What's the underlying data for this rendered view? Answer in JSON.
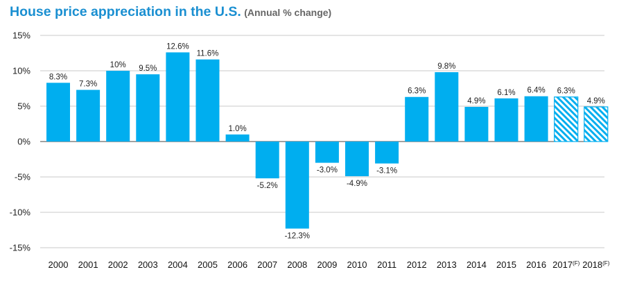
{
  "title": "House price appreciation in the U.S.",
  "subtitle": "(Annual % change)",
  "colors": {
    "title": "#1a8fd1",
    "bar": "#00aeef",
    "grid": "#c8c8c8"
  },
  "chart_data": {
    "type": "bar",
    "title": "House price appreciation in the U.S.",
    "subtitle": "(Annual % change)",
    "xlabel": "",
    "ylabel": "",
    "ylim": [
      -15,
      15
    ],
    "yticks": [
      15,
      10,
      5,
      0,
      -5,
      -10,
      -15
    ],
    "ytick_labels": [
      "15%",
      "10%",
      "5%",
      "0%",
      "-5%",
      "-10%",
      "-15%"
    ],
    "grid": true,
    "categories": [
      "2000",
      "2001",
      "2002",
      "2003",
      "2004",
      "2005",
      "2006",
      "2007",
      "2008",
      "2009",
      "2010",
      "2011",
      "2012",
      "2013",
      "2014",
      "2015",
      "2016",
      "2017(F)",
      "2018(F)"
    ],
    "values": [
      8.3,
      7.3,
      10,
      9.5,
      12.6,
      11.6,
      1.0,
      -5.2,
      -12.3,
      -3.0,
      -4.9,
      -3.1,
      6.3,
      9.8,
      4.9,
      6.1,
      6.4,
      6.3,
      4.9
    ],
    "labels": [
      "8.3%",
      "7.3%",
      "10%",
      "9.5%",
      "12.6%",
      "11.6%",
      "1.0%",
      "-5.2%",
      "-12.3%",
      "-3.0%",
      "-4.9%",
      "-3.1%",
      "6.3%",
      "9.8%",
      "4.9%",
      "6.1%",
      "6.4%",
      "6.3%",
      "4.9%"
    ],
    "forecast": [
      false,
      false,
      false,
      false,
      false,
      false,
      false,
      false,
      false,
      false,
      false,
      false,
      false,
      false,
      false,
      false,
      false,
      true,
      true
    ]
  }
}
